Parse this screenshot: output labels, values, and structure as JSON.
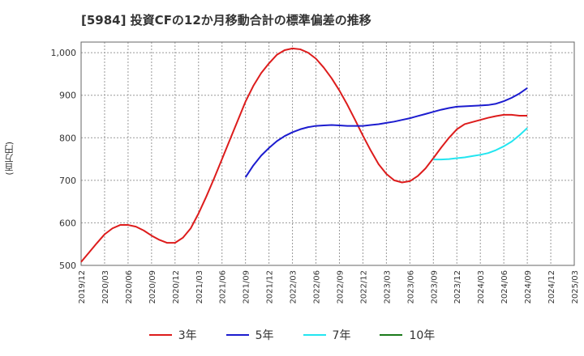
{
  "title": "[5984]  投資CFの12か月移動合計の標準偏差の推移",
  "y_unit_label": "(百万円)",
  "chart_data": {
    "type": "line",
    "title": "[5984]  投資CFの12か月移動合計の標準偏差の推移",
    "ylabel": "(百万円)",
    "ylim": [
      500,
      1025
    ],
    "yticks": [
      500,
      600,
      700,
      800,
      900,
      1000
    ],
    "ytick_labels": [
      "500",
      "600",
      "700",
      "800",
      "900",
      "1,000"
    ],
    "xticks": [
      "2019/12",
      "2020/03",
      "2020/06",
      "2020/09",
      "2020/12",
      "2021/03",
      "2021/06",
      "2021/09",
      "2021/12",
      "2022/03",
      "2022/06",
      "2022/09",
      "2022/12",
      "2023/03",
      "2023/06",
      "2023/09",
      "2023/12",
      "2024/03",
      "2024/06",
      "2024/09",
      "2024/12",
      "2025/03"
    ],
    "grid": true,
    "legend_position": "bottom",
    "series": [
      {
        "name": "3年",
        "color": "#dd1c1c",
        "x": [
          "2019/12",
          "2020/01",
          "2020/02",
          "2020/03",
          "2020/04",
          "2020/05",
          "2020/06",
          "2020/07",
          "2020/08",
          "2020/09",
          "2020/10",
          "2020/11",
          "2020/12",
          "2021/01",
          "2021/02",
          "2021/03",
          "2021/04",
          "2021/05",
          "2021/06",
          "2021/07",
          "2021/08",
          "2021/09",
          "2021/10",
          "2021/11",
          "2021/12",
          "2022/01",
          "2022/02",
          "2022/03",
          "2022/04",
          "2022/05",
          "2022/06",
          "2022/07",
          "2022/08",
          "2022/09",
          "2022/10",
          "2022/11",
          "2022/12",
          "2023/01",
          "2023/02",
          "2023/03",
          "2023/04",
          "2023/05",
          "2023/06",
          "2023/07",
          "2023/08",
          "2023/09",
          "2023/10",
          "2023/11",
          "2023/12",
          "2024/01",
          "2024/02",
          "2024/03",
          "2024/04",
          "2024/05",
          "2024/06",
          "2024/07",
          "2024/08",
          "2024/09"
        ],
        "values": [
          508,
          530,
          552,
          573,
          587,
          595,
          595,
          591,
          582,
          570,
          560,
          553,
          553,
          565,
          587,
          622,
          662,
          705,
          750,
          795,
          840,
          885,
          922,
          952,
          975,
          995,
          1006,
          1010,
          1008,
          1000,
          986,
          965,
          940,
          911,
          878,
          842,
          805,
          770,
          738,
          715,
          700,
          695,
          698,
          710,
          728,
          752,
          777,
          800,
          820,
          832,
          837,
          842,
          847,
          851,
          854,
          854,
          852,
          852
        ]
      },
      {
        "name": "5年",
        "color": "#1c1ccf",
        "x": [
          "2021/09",
          "2021/10",
          "2021/11",
          "2021/12",
          "2022/01",
          "2022/02",
          "2022/03",
          "2022/04",
          "2022/05",
          "2022/06",
          "2022/07",
          "2022/08",
          "2022/09",
          "2022/10",
          "2022/11",
          "2022/12",
          "2023/01",
          "2023/02",
          "2023/03",
          "2023/04",
          "2023/05",
          "2023/06",
          "2023/07",
          "2023/08",
          "2023/09",
          "2023/10",
          "2023/11",
          "2023/12",
          "2024/01",
          "2024/02",
          "2024/03",
          "2024/04",
          "2024/05",
          "2024/06",
          "2024/07",
          "2024/08",
          "2024/09"
        ],
        "values": [
          707,
          735,
          758,
          776,
          792,
          804,
          813,
          820,
          825,
          828,
          829,
          830,
          829,
          828,
          828,
          828,
          830,
          832,
          835,
          838,
          842,
          846,
          851,
          856,
          861,
          866,
          870,
          873,
          874,
          875,
          876,
          877,
          880,
          886,
          894,
          904,
          917
        ]
      },
      {
        "name": "7年",
        "color": "#22e5f0",
        "x": [
          "2023/09",
          "2023/10",
          "2023/11",
          "2023/12",
          "2024/01",
          "2024/02",
          "2024/03",
          "2024/04",
          "2024/05",
          "2024/06",
          "2024/07",
          "2024/08",
          "2024/09"
        ],
        "values": [
          749,
          749,
          750,
          752,
          754,
          757,
          760,
          764,
          771,
          780,
          791,
          806,
          823
        ]
      },
      {
        "name": "10年",
        "color": "#1a7a1a",
        "x": [],
        "values": []
      }
    ]
  }
}
